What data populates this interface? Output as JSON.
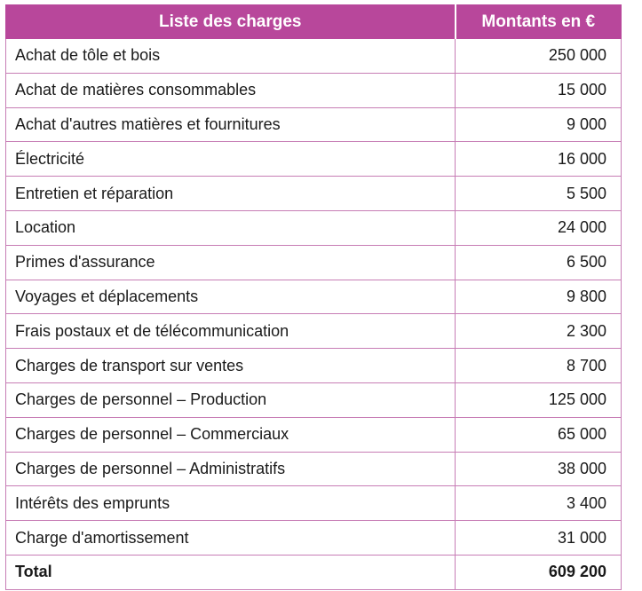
{
  "table": {
    "header": [
      "Liste des charges",
      "Montants en €"
    ],
    "rows": [
      [
        "Achat de tôle et bois",
        "250 000"
      ],
      [
        "Achat de matières consommables",
        "15 000"
      ],
      [
        "Achat d'autres matières et fournitures",
        "9 000"
      ],
      [
        "Électricité",
        "16 000"
      ],
      [
        "Entretien et réparation",
        "5 500"
      ],
      [
        "Location",
        "24 000"
      ],
      [
        "Primes d'assurance",
        "6 500"
      ],
      [
        "Voyages et déplacements",
        "9 800"
      ],
      [
        "Frais postaux et de télécommunication",
        "2 300"
      ],
      [
        "Charges de transport sur ventes",
        "8 700"
      ],
      [
        "Charges de personnel – Production",
        "125 000"
      ],
      [
        "Charges de personnel – Commerciaux",
        "65 000"
      ],
      [
        "Charges de personnel – Administratifs",
        "38 000"
      ],
      [
        "Intérêts des emprunts",
        "3 400"
      ],
      [
        "Charge d'amortissement",
        "31 000"
      ]
    ],
    "total": [
      "Total",
      "609 200"
    ]
  }
}
